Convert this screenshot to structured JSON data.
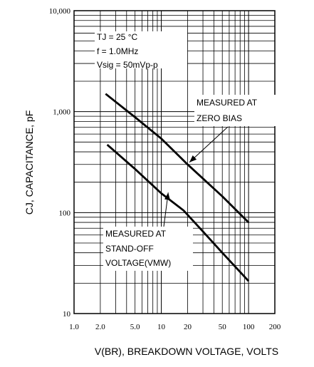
{
  "chart_data": {
    "type": "line",
    "x_scale": "log",
    "y_scale": "log",
    "xlim": [
      1,
      200
    ],
    "ylim": [
      10,
      10000
    ],
    "xlabel": "V(BR), BREAKDOWN VOLTAGE, VOLTS",
    "ylabel": "CJ, CAPACITANCE, pF",
    "x_ticks": [
      "1.0",
      "2.0",
      "5.0",
      "10",
      "20",
      "50",
      "100",
      "200"
    ],
    "x_tick_values": [
      1,
      2,
      5,
      10,
      20,
      50,
      100,
      200
    ],
    "y_ticks": [
      "10",
      "100",
      "1,000",
      "10,000"
    ],
    "y_tick_values": [
      10,
      100,
      1000,
      10000
    ],
    "grid": true,
    "series": [
      {
        "points": [
          [
            2.3,
            1500
          ],
          [
            5,
            880
          ],
          [
            10,
            540
          ],
          [
            20,
            300
          ],
          [
            50,
            145
          ],
          [
            100,
            80
          ]
        ],
        "color": "#000000"
      },
      {
        "points": [
          [
            2.4,
            470
          ],
          [
            5,
            270
          ],
          [
            10,
            155
          ],
          [
            18,
            105
          ],
          [
            30,
            65
          ],
          [
            50,
            40
          ],
          [
            100,
            21
          ]
        ],
        "color": "#000000"
      }
    ],
    "conditions": [
      "TJ = 25 °C",
      "f = 1.0MHz",
      "Vsig = 50mVp-p"
    ],
    "annotations": [
      {
        "lines": [
          "MEASURED AT",
          "ZERO BIAS"
        ],
        "arrow_to": [
          21,
          315
        ]
      },
      {
        "lines": [
          "MEASURED AT",
          "STAND-OFF",
          "VOLTAGE(VMW)"
        ],
        "arrow_to": [
          12,
          158
        ]
      }
    ]
  }
}
